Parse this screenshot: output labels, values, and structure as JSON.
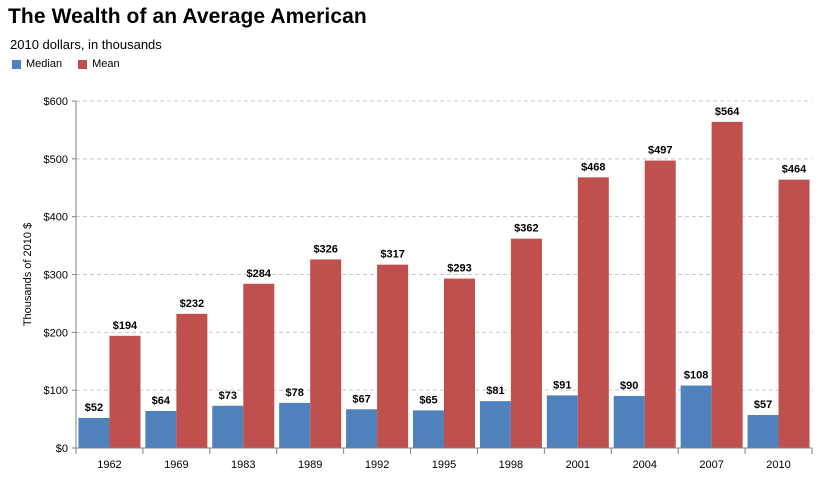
{
  "chart_data": {
    "type": "bar",
    "title": "The Wealth of an Average American",
    "subtitle": "2010 dollars, in thousands",
    "xlabel": "",
    "ylabel": "Thousands of 2010 $",
    "ylim": [
      0,
      600
    ],
    "yticks": [
      "$0",
      "$100",
      "$200",
      "$300",
      "$400",
      "$500",
      "$600"
    ],
    "ytick_values": [
      0,
      100,
      200,
      300,
      400,
      500,
      600
    ],
    "grid": true,
    "legend_position": "top-left",
    "categories": [
      "1962",
      "1969",
      "1983",
      "1989",
      "1992",
      "1995",
      "1998",
      "2001",
      "2004",
      "2007",
      "2010"
    ],
    "series": [
      {
        "name": "Median",
        "color": "#4f81bd",
        "values": [
          52,
          64,
          73,
          78,
          67,
          65,
          81,
          91,
          90,
          108,
          57
        ],
        "labels": [
          "$52",
          "$64",
          "$73",
          "$78",
          "$67",
          "$65",
          "$81",
          "$91",
          "$90",
          "$108",
          "$57"
        ]
      },
      {
        "name": "Mean",
        "color": "#c0504d",
        "values": [
          194,
          232,
          284,
          326,
          317,
          293,
          362,
          468,
          497,
          564,
          464
        ],
        "labels": [
          "$194",
          "$232",
          "$284",
          "$326",
          "$317",
          "$293",
          "$362",
          "$468",
          "$497",
          "$564",
          "$464"
        ]
      }
    ]
  }
}
